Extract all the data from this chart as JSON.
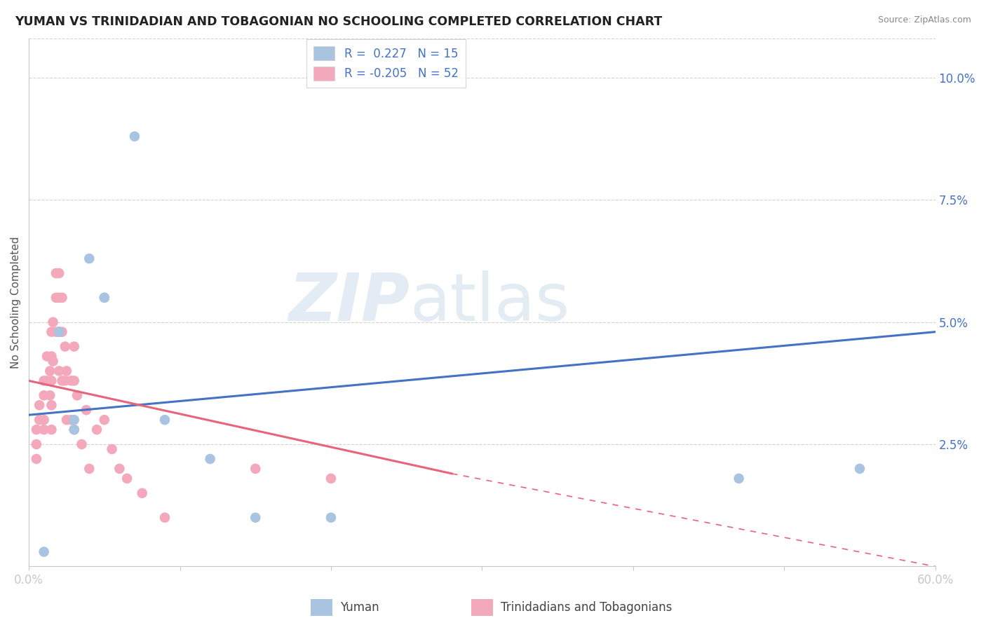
{
  "title": "YUMAN VS TRINIDADIAN AND TOBAGONIAN NO SCHOOLING COMPLETED CORRELATION CHART",
  "source": "Source: ZipAtlas.com",
  "ylabel": "No Schooling Completed",
  "ytick_labels": [
    "2.5%",
    "5.0%",
    "7.5%",
    "10.0%"
  ],
  "ytick_values": [
    0.025,
    0.05,
    0.075,
    0.1
  ],
  "xlim": [
    0.0,
    0.6
  ],
  "ylim": [
    0.0,
    0.108
  ],
  "legend_r_yuman": "0.227",
  "legend_n_yuman": "15",
  "legend_r_trinidadian": "-0.205",
  "legend_n_trinidadian": "52",
  "yuman_color": "#a8c4e0",
  "trinidadian_color": "#f4a8bc",
  "yuman_line_color": "#4472c4",
  "trinidadian_line_color": "#e8647a",
  "background_color": "#ffffff",
  "grid_color": "#c8c8c8",
  "watermark_zip": "ZIP",
  "watermark_atlas": "atlas",
  "yuman_scatter_x": [
    0.01,
    0.02,
    0.02,
    0.03,
    0.03,
    0.04,
    0.05,
    0.05,
    0.07,
    0.09,
    0.12,
    0.15,
    0.2,
    0.47,
    0.55
  ],
  "yuman_scatter_y": [
    0.003,
    0.048,
    0.048,
    0.03,
    0.028,
    0.063,
    0.055,
    0.055,
    0.088,
    0.03,
    0.022,
    0.01,
    0.01,
    0.018,
    0.02
  ],
  "trinidadian_scatter_x": [
    0.005,
    0.005,
    0.005,
    0.007,
    0.007,
    0.01,
    0.01,
    0.01,
    0.01,
    0.012,
    0.012,
    0.014,
    0.014,
    0.015,
    0.015,
    0.015,
    0.015,
    0.015,
    0.016,
    0.016,
    0.018,
    0.018,
    0.018,
    0.02,
    0.02,
    0.02,
    0.02,
    0.022,
    0.022,
    0.022,
    0.024,
    0.024,
    0.025,
    0.025,
    0.028,
    0.028,
    0.03,
    0.03,
    0.03,
    0.032,
    0.035,
    0.038,
    0.04,
    0.045,
    0.05,
    0.055,
    0.06,
    0.065,
    0.075,
    0.09,
    0.15,
    0.2
  ],
  "trinidadian_scatter_y": [
    0.025,
    0.028,
    0.022,
    0.033,
    0.03,
    0.038,
    0.035,
    0.03,
    0.028,
    0.043,
    0.038,
    0.04,
    0.035,
    0.048,
    0.043,
    0.038,
    0.033,
    0.028,
    0.05,
    0.042,
    0.06,
    0.055,
    0.048,
    0.06,
    0.055,
    0.048,
    0.04,
    0.055,
    0.048,
    0.038,
    0.045,
    0.038,
    0.04,
    0.03,
    0.038,
    0.03,
    0.045,
    0.038,
    0.028,
    0.035,
    0.025,
    0.032,
    0.02,
    0.028,
    0.03,
    0.024,
    0.02,
    0.018,
    0.015,
    0.01,
    0.02,
    0.018
  ],
  "yuman_line_x0": 0.0,
  "yuman_line_y0": 0.031,
  "yuman_line_x1": 0.6,
  "yuman_line_y1": 0.048,
  "trin_line_x0": 0.0,
  "trin_line_y0": 0.038,
  "trin_line_x1_solid": 0.28,
  "trin_line_y1_solid": 0.019,
  "trin_line_x1_dash": 0.6,
  "trin_line_y1_dash": 0.0
}
